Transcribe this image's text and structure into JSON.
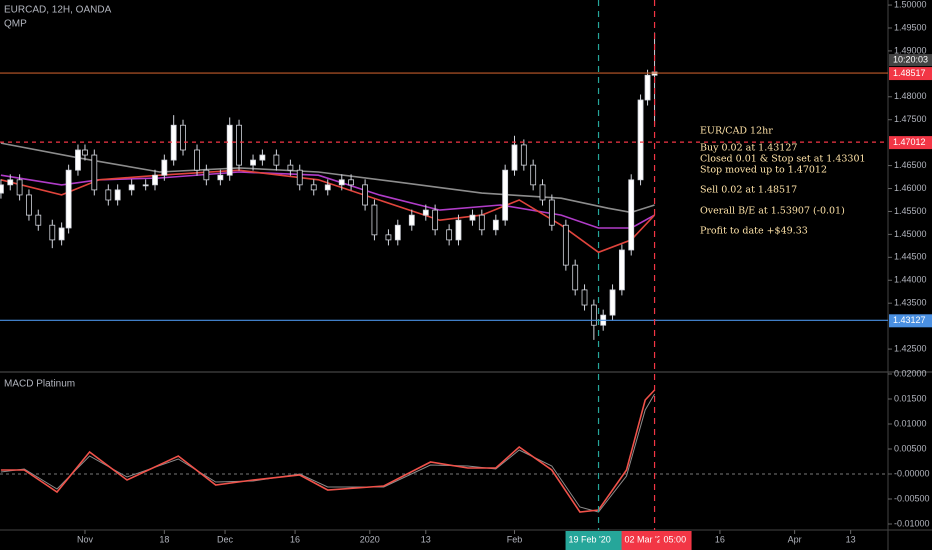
{
  "chart_data": [
    {
      "type": "candlestick",
      "title": "EURCAD, 12H, OANDA",
      "indicator": "QMP",
      "x": [
        -18,
        -16,
        -14,
        -12,
        -10,
        -7,
        -5,
        -3.5,
        -1.5,
        0,
        2,
        5,
        7,
        10,
        13,
        15,
        17,
        19,
        21,
        24,
        26,
        29,
        31,
        33,
        36,
        38,
        41,
        44,
        46,
        49,
        52,
        55,
        57,
        60,
        62,
        65,
        67,
        70,
        73,
        75,
        78,
        80,
        83,
        85,
        88,
        90,
        92,
        94,
        96,
        98,
        100,
        103,
        105,
        107,
        109,
        111,
        113,
        115,
        117,
        119,
        120.5,
        122
      ],
      "open": [
        1.459,
        1.4608,
        1.4619,
        1.4586,
        1.4542,
        1.452,
        1.4488,
        1.4514,
        1.464,
        1.4684,
        1.4673,
        1.4597,
        1.4575,
        1.4597,
        1.4608,
        1.4608,
        1.4629,
        1.4662,
        1.4738,
        1.4684,
        1.464,
        1.4619,
        1.4629,
        1.4738,
        1.4651,
        1.4662,
        1.4673,
        1.4651,
        1.464,
        1.4608,
        1.4597,
        1.4608,
        1.4619,
        1.4608,
        1.4564,
        1.4499,
        1.4488,
        1.452,
        1.4542,
        1.4553,
        1.451,
        1.4488,
        1.4531,
        1.4542,
        1.451,
        1.4531,
        1.464,
        1.4695,
        1.4651,
        1.4608,
        1.4575,
        1.452,
        1.4433,
        1.4379,
        1.4346,
        1.4302,
        1.4324,
        1.4379,
        1.4466,
        1.4619,
        1.4793,
        1.4847
      ],
      "high": [
        1.462,
        1.4631,
        1.4631,
        1.4598,
        1.4554,
        1.4532,
        1.4526,
        1.4652,
        1.4696,
        1.4696,
        1.4685,
        1.4609,
        1.4609,
        1.462,
        1.462,
        1.4641,
        1.4674,
        1.476,
        1.475,
        1.4696,
        1.4652,
        1.4641,
        1.4755,
        1.475,
        1.4674,
        1.4685,
        1.4685,
        1.4663,
        1.4652,
        1.462,
        1.462,
        1.4631,
        1.4631,
        1.462,
        1.4576,
        1.4511,
        1.4532,
        1.4554,
        1.4565,
        1.4565,
        1.4522,
        1.4543,
        1.4554,
        1.4554,
        1.4543,
        1.4652,
        1.4715,
        1.4707,
        1.4663,
        1.462,
        1.4587,
        1.4532,
        1.4445,
        1.4391,
        1.4358,
        1.4336,
        1.4391,
        1.4478,
        1.4631,
        1.4805,
        1.4859,
        1.494
      ],
      "low": [
        1.4578,
        1.4596,
        1.4574,
        1.453,
        1.4508,
        1.447,
        1.4476,
        1.4502,
        1.4628,
        1.4661,
        1.4585,
        1.4563,
        1.4563,
        1.4585,
        1.4596,
        1.4596,
        1.4617,
        1.465,
        1.4672,
        1.4628,
        1.4607,
        1.4607,
        1.4617,
        1.4639,
        1.4639,
        1.465,
        1.4639,
        1.4628,
        1.4596,
        1.4585,
        1.4585,
        1.4596,
        1.4596,
        1.4552,
        1.4487,
        1.4476,
        1.4476,
        1.4508,
        1.453,
        1.4498,
        1.4476,
        1.4476,
        1.4519,
        1.4498,
        1.4498,
        1.4519,
        1.4628,
        1.4639,
        1.4596,
        1.4563,
        1.4508,
        1.4421,
        1.4367,
        1.4334,
        1.427,
        1.429,
        1.4312,
        1.4367,
        1.4454,
        1.4607,
        1.4781,
        1.4738
      ],
      "close": [
        1.4608,
        1.4619,
        1.4586,
        1.4542,
        1.452,
        1.4488,
        1.4514,
        1.464,
        1.4684,
        1.4673,
        1.4597,
        1.4575,
        1.4597,
        1.4608,
        1.4608,
        1.4629,
        1.4662,
        1.4738,
        1.4684,
        1.464,
        1.4619,
        1.4629,
        1.4738,
        1.4651,
        1.4662,
        1.4673,
        1.4651,
        1.464,
        1.4608,
        1.4597,
        1.4608,
        1.4619,
        1.4608,
        1.4564,
        1.4499,
        1.4488,
        1.452,
        1.4542,
        1.4553,
        1.451,
        1.4488,
        1.4531,
        1.4542,
        1.451,
        1.4531,
        1.464,
        1.4695,
        1.4651,
        1.4608,
        1.4575,
        1.452,
        1.4433,
        1.4379,
        1.4346,
        1.4302,
        1.4324,
        1.4379,
        1.4466,
        1.4619,
        1.4793,
        1.4847,
        1.4854
      ],
      "up_color": "#ffffff",
      "down_color": "#000000",
      "wick_color": "#d1d4dc",
      "lines": [
        {
          "color": "#8c8c8c",
          "x": [
            -18,
            -1,
            16,
            33,
            50,
            67,
            85,
            102,
            112,
            117,
            122
          ],
          "values": [
            1.4699,
            1.4666,
            1.4636,
            1.4645,
            1.4636,
            1.4614,
            1.459,
            1.4579,
            1.4557,
            1.4548,
            1.4564
          ]
        },
        {
          "color": "#b03cc8",
          "x": [
            -18,
            -5,
            3,
            16,
            33,
            50,
            63,
            76,
            89,
            102,
            110,
            117,
            122
          ],
          "values": [
            1.4629,
            1.4608,
            1.4619,
            1.4623,
            1.4636,
            1.4629,
            1.4586,
            1.4553,
            1.4564,
            1.4542,
            1.4514,
            1.4514,
            1.4542
          ]
        },
        {
          "color": "#e0443c",
          "x": [
            -18,
            -5,
            3,
            16,
            33,
            50,
            63,
            76,
            85,
            93,
            102,
            110,
            117,
            122
          ],
          "values": [
            1.4619,
            1.4586,
            1.4619,
            1.4629,
            1.464,
            1.4619,
            1.4575,
            1.4531,
            1.4542,
            1.4575,
            1.452,
            1.4461,
            1.4488,
            1.4542
          ]
        }
      ],
      "levels": [
        {
          "value": 1.48517,
          "color": "#f23645",
          "line_color": "#c05a2a",
          "dashed": false,
          "time_label": "10:20:03"
        },
        {
          "value": 1.47012,
          "color": "#f23645",
          "line_color": "#f23645",
          "dashed": true
        },
        {
          "value": 1.43127,
          "color": "#4a90e2",
          "line_color": "#4a90e2",
          "dashed": false
        }
      ],
      "annotations": [
        "EUR/CAD 12hr",
        "Buy 0.02 at 1.43127",
        "Closed 0.01 & Stop set at 1.43301",
        "Stop moved up to 1.47012",
        "Sell 0.02 at 1.48517",
        "Overall B/E at 1.53907 (-0.01)",
        "Profit to date +$49.33"
      ],
      "xlim": [
        -18.2,
        172
      ],
      "ylim": [
        1.42,
        1.5011
      ],
      "yticks": [
        {
          "value": 1.425,
          "label": "1.42500"
        },
        {
          "value": 1.435,
          "label": "1.43500"
        },
        {
          "value": 1.44,
          "label": "1.44000"
        },
        {
          "value": 1.445,
          "label": "1.44500"
        },
        {
          "value": 1.45,
          "label": "1.45000"
        },
        {
          "value": 1.455,
          "label": "1.45500"
        },
        {
          "value": 1.46,
          "label": "1.46000"
        },
        {
          "value": 1.465,
          "label": "1.46500"
        },
        {
          "value": 1.475,
          "label": "1.47500"
        },
        {
          "value": 1.48,
          "label": "1.48000"
        },
        {
          "value": 1.49,
          "label": "1.49000"
        },
        {
          "value": 1.495,
          "label": "1.49500"
        },
        {
          "value": 1.5,
          "label": "1.50000"
        }
      ]
    },
    {
      "type": "line",
      "title": "MACD Platinum",
      "series": [
        {
          "color": "#8c8c8c",
          "x": [
            -18,
            -13,
            -6,
            1,
            9,
            20,
            28,
            36,
            46,
            52,
            64,
            74,
            82,
            88,
            93,
            100,
            106,
            110,
            116,
            120,
            122
          ],
          "values": [
            0.0004,
            0.001,
            -0.003,
            0.0036,
            -0.0006,
            0.003,
            -0.0016,
            -0.0014,
            0.0,
            -0.0026,
            -0.0026,
            0.0018,
            0.0016,
            0.001,
            0.0048,
            0.0016,
            -0.0066,
            -0.0076,
            -0.0004,
            0.0128,
            0.016
          ]
        },
        {
          "color": "#f0524a",
          "x": [
            -18,
            -13,
            -6,
            1,
            9,
            20,
            28,
            36,
            46,
            52,
            64,
            74,
            82,
            88,
            93,
            100,
            106,
            110,
            116,
            120,
            122
          ],
          "values": [
            0.0008,
            0.0008,
            -0.0036,
            0.0044,
            -0.0012,
            0.0036,
            -0.0022,
            -0.0012,
            -0.0002,
            -0.0032,
            -0.0024,
            0.0024,
            0.0012,
            0.0012,
            0.0054,
            0.0008,
            -0.0076,
            -0.0072,
            0.0008,
            0.0148,
            0.0168
          ]
        }
      ],
      "zero_line": 0,
      "xlim": [
        -18.2,
        172
      ],
      "ylim": [
        -0.0112,
        0.0204
      ],
      "yticks": [
        {
          "value": -0.01,
          "label": "-0.01000"
        },
        {
          "value": -0.005,
          "label": "-0.00500"
        },
        {
          "value": 0,
          "label": "-0.00000"
        },
        {
          "value": 0.005,
          "label": "0.00500"
        },
        {
          "value": 0.01,
          "label": "0.01000"
        },
        {
          "value": 0.015,
          "label": "0.01500"
        },
        {
          "value": 0.02,
          "label": "0.02000"
        }
      ],
      "xticks": [
        {
          "value": 0,
          "label": "Nov"
        },
        {
          "value": 17,
          "label": "18"
        },
        {
          "value": 30,
          "label": "Dec"
        },
        {
          "value": 45,
          "label": "16"
        },
        {
          "value": 61,
          "label": "2020"
        },
        {
          "value": 73,
          "label": "13"
        },
        {
          "value": 92,
          "label": "Feb"
        },
        {
          "value": 136,
          "label": "16"
        },
        {
          "value": 152,
          "label": "Apr"
        },
        {
          "value": 164,
          "label": "13"
        }
      ],
      "markers": [
        {
          "x": 110,
          "label": "19 Feb '20",
          "color": "#26a69a"
        },
        {
          "x": 122,
          "label": "02 Mar '20",
          "color": "#f23645",
          "extra": "05:00"
        }
      ]
    }
  ]
}
